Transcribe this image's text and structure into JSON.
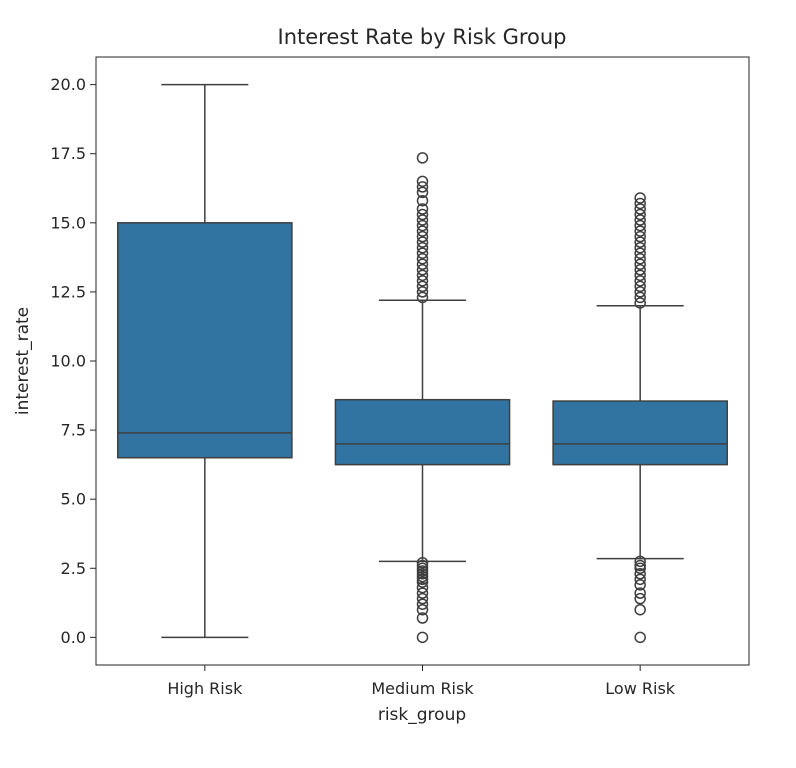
{
  "chart_data": {
    "type": "box",
    "title": "Interest Rate by Risk Group",
    "xlabel": "risk_group",
    "ylabel": "interest_rate",
    "ylim": [
      -1.0,
      21.0
    ],
    "yticks": [
      "0.0",
      "2.5",
      "5.0",
      "7.5",
      "10.0",
      "12.5",
      "15.0",
      "17.5",
      "20.0"
    ],
    "ytick_values": [
      0,
      2.5,
      5,
      7.5,
      10,
      12.5,
      15,
      17.5,
      20
    ],
    "grid": false,
    "box_color": "#3274a1",
    "line_color": "#3f3f3f",
    "categories": [
      "High Risk",
      "Medium Risk",
      "Low Risk"
    ],
    "boxes": [
      {
        "category": "High Risk",
        "whisker_low": 0.0,
        "q1": 6.5,
        "median": 7.4,
        "q3": 15.0,
        "whisker_high": 20.0,
        "outliers": []
      },
      {
        "category": "Medium Risk",
        "whisker_low": 2.75,
        "q1": 6.25,
        "median": 7.0,
        "q3": 8.6,
        "whisker_high": 12.2,
        "outliers": [
          0.0,
          0.7,
          1.0,
          1.2,
          1.4,
          1.6,
          1.8,
          2.0,
          2.1,
          2.2,
          2.3,
          2.4,
          2.5,
          2.6,
          2.7,
          12.3,
          12.5,
          12.7,
          12.9,
          13.1,
          13.3,
          13.5,
          13.7,
          13.9,
          14.1,
          14.3,
          14.5,
          14.7,
          14.9,
          15.1,
          15.3,
          15.5,
          15.8,
          16.1,
          16.3,
          16.5,
          17.35
        ]
      },
      {
        "category": "Low Risk",
        "whisker_low": 2.85,
        "q1": 6.25,
        "median": 7.0,
        "q3": 8.55,
        "whisker_high": 12.0,
        "outliers": [
          0.0,
          1.0,
          1.4,
          1.6,
          1.9,
          2.1,
          2.3,
          2.5,
          2.6,
          2.75,
          12.1,
          12.3,
          12.5,
          12.7,
          12.9,
          13.1,
          13.3,
          13.5,
          13.7,
          13.9,
          14.1,
          14.3,
          14.5,
          14.7,
          14.9,
          15.1,
          15.3,
          15.5,
          15.7,
          15.9
        ]
      }
    ]
  }
}
